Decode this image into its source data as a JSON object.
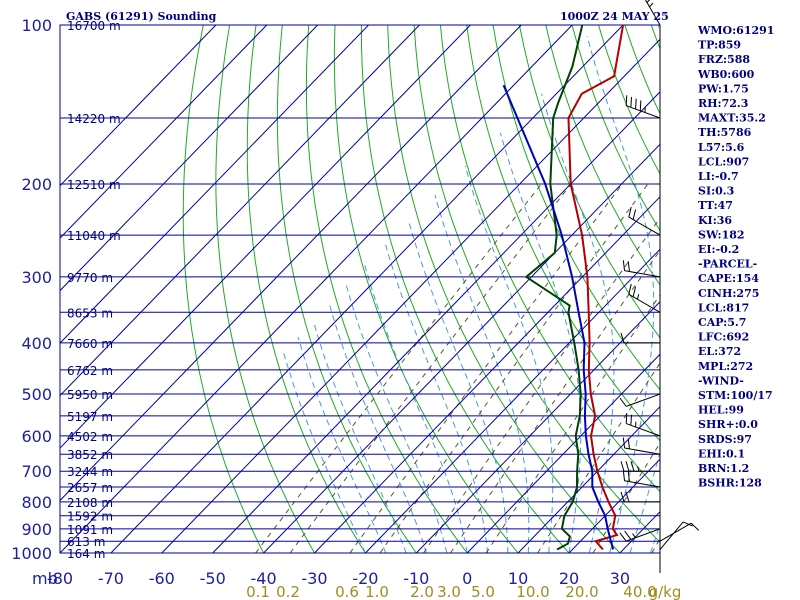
{
  "header": {
    "station": "GABS (61291) Sounding",
    "time": "1000Z 24 MAY 25"
  },
  "chart_data": {
    "type": "line",
    "pressure_unit_label": "mb",
    "pressure_levels": [
      100,
      200,
      300,
      400,
      500,
      600,
      700,
      800,
      900,
      1000
    ],
    "pressure_range": [
      100,
      1000
    ],
    "temperature_ticks": [
      -80,
      -70,
      -60,
      -50,
      -40,
      -30,
      -20,
      -10,
      0,
      10,
      20,
      30
    ],
    "temperature_range": [
      -80,
      40
    ],
    "height_labels": [
      {
        "p": 100,
        "label": "16700 m"
      },
      {
        "p": 150,
        "label": "14220 m"
      },
      {
        "p": 200,
        "label": "12510 m"
      },
      {
        "p": 250,
        "label": "11040 m"
      },
      {
        "p": 300,
        "label": "9770 m"
      },
      {
        "p": 350,
        "label": "8653 m"
      },
      {
        "p": 400,
        "label": "7660 m"
      },
      {
        "p": 450,
        "label": "6762 m"
      },
      {
        "p": 500,
        "label": "5950 m"
      },
      {
        "p": 550,
        "label": "5197 m"
      },
      {
        "p": 600,
        "label": "4502 m"
      },
      {
        "p": 650,
        "label": "3852 m"
      },
      {
        "p": 700,
        "label": "3244 m"
      },
      {
        "p": 750,
        "label": "2657 m"
      },
      {
        "p": 800,
        "label": "2108 m"
      },
      {
        "p": 850,
        "label": "1592 m"
      },
      {
        "p": 900,
        "label": "1091 m"
      },
      {
        "p": 950,
        "label": "613 m"
      },
      {
        "p": 985,
        "label": "164 m"
      }
    ],
    "mixing_ratio_labels": [
      "0.1",
      "0.2",
      "0.6",
      "1.0",
      "2.0",
      "3.0",
      "5.0",
      "10.0",
      "20.0",
      "40.0",
      "g/kg"
    ],
    "mixing_ratio_values": [
      0.1,
      0.2,
      0.6,
      1.0,
      2.0,
      3.0,
      5.0,
      10.0,
      20.0,
      40.0
    ],
    "series": [
      {
        "color": "#b40000",
        "points": [
          [
            100,
            -70
          ],
          [
            125,
            -62
          ],
          [
            135,
            -65
          ],
          [
            150,
            -63
          ],
          [
            200,
            -50
          ],
          [
            250,
            -38
          ],
          [
            300,
            -29
          ],
          [
            350,
            -22
          ],
          [
            400,
            -16
          ],
          [
            450,
            -11
          ],
          [
            500,
            -6
          ],
          [
            550,
            -1
          ],
          [
            600,
            2
          ],
          [
            650,
            6
          ],
          [
            700,
            10
          ],
          [
            750,
            14
          ],
          [
            800,
            18
          ],
          [
            850,
            22
          ],
          [
            900,
            24
          ],
          [
            925,
            26
          ],
          [
            950,
            23
          ],
          [
            985,
            26
          ]
        ]
      },
      {
        "color": "#004000",
        "points": [
          [
            100,
            -78
          ],
          [
            120,
            -72
          ],
          [
            140,
            -68
          ],
          [
            150,
            -66
          ],
          [
            200,
            -54
          ],
          [
            250,
            -43
          ],
          [
            270,
            -40
          ],
          [
            300,
            -41
          ],
          [
            340,
            -27
          ],
          [
            350,
            -26
          ],
          [
            400,
            -19
          ],
          [
            450,
            -13
          ],
          [
            500,
            -8
          ],
          [
            550,
            -4
          ],
          [
            600,
            -1
          ],
          [
            650,
            3
          ],
          [
            700,
            6
          ],
          [
            750,
            9
          ],
          [
            800,
            11
          ],
          [
            850,
            12
          ],
          [
            900,
            14
          ],
          [
            930,
            17
          ],
          [
            960,
            18
          ],
          [
            985,
            17
          ]
        ]
      },
      {
        "color": "#0000b4",
        "points": [
          [
            130,
            -82
          ],
          [
            200,
            -55
          ],
          [
            250,
            -42
          ],
          [
            300,
            -32
          ],
          [
            350,
            -24
          ],
          [
            400,
            -17
          ],
          [
            450,
            -12
          ],
          [
            500,
            -7
          ],
          [
            550,
            -3
          ],
          [
            600,
            1
          ],
          [
            650,
            5
          ],
          [
            700,
            9
          ],
          [
            750,
            12
          ],
          [
            800,
            16
          ],
          [
            850,
            20
          ],
          [
            900,
            23
          ],
          [
            950,
            26
          ],
          [
            985,
            28
          ]
        ]
      }
    ],
    "wind_barbs": [
      {
        "p": 100,
        "dir": 330,
        "spd": 25
      },
      {
        "p": 150,
        "dir": 290,
        "spd": 35
      },
      {
        "p": 250,
        "dir": 300,
        "spd": 20
      },
      {
        "p": 300,
        "dir": 280,
        "spd": 20
      },
      {
        "p": 350,
        "dir": 300,
        "spd": 15
      },
      {
        "p": 400,
        "dir": 270,
        "spd": 10
      },
      {
        "p": 500,
        "dir": 250,
        "spd": 10
      },
      {
        "p": 600,
        "dir": 290,
        "spd": 15
      },
      {
        "p": 650,
        "dir": 280,
        "spd": 20
      },
      {
        "p": 700,
        "dir": 270,
        "spd": 25
      },
      {
        "p": 750,
        "dir": 280,
        "spd": 20
      },
      {
        "p": 800,
        "dir": 270,
        "spd": 20
      },
      {
        "p": 900,
        "dir": 250,
        "spd": 15
      },
      {
        "p": 950,
        "dir": 60,
        "spd": 10
      },
      {
        "p": 985,
        "dir": 40,
        "spd": 10
      }
    ]
  },
  "indices": [
    "WMO:61291",
    "TP:859",
    "FRZ:588",
    "WB0:600",
    "PW:1.75",
    "RH:72.3",
    "MAXT:35.2",
    "TH:5786",
    "L57:5.6",
    "LCL:907",
    "LI:-0.7",
    "SI:0.3",
    "TT:47",
    "KI:36",
    "SW:182",
    "EI:-0.2",
    "-PARCEL-",
    "CAPE:154",
    "CINH:275",
    "LCL:817",
    "CAP:5.7",
    "LFC:692",
    "EL:372",
    "MPL:272",
    "-WIND-",
    "STM:100/17",
    "HEL:99",
    "SHR+:0.0",
    "SRDS:97",
    "EHI:0.1",
    "BRN:1.2",
    "BSHR:128"
  ],
  "colors": {
    "isobar": "#0000a0",
    "isotherm": "#0000a0",
    "dry_adiabat": "#22aa22",
    "moist_adiabat": "#4a9ad8",
    "mixing_ratio": "#555533",
    "text": "#000080",
    "mr_text": "#a08c20"
  }
}
